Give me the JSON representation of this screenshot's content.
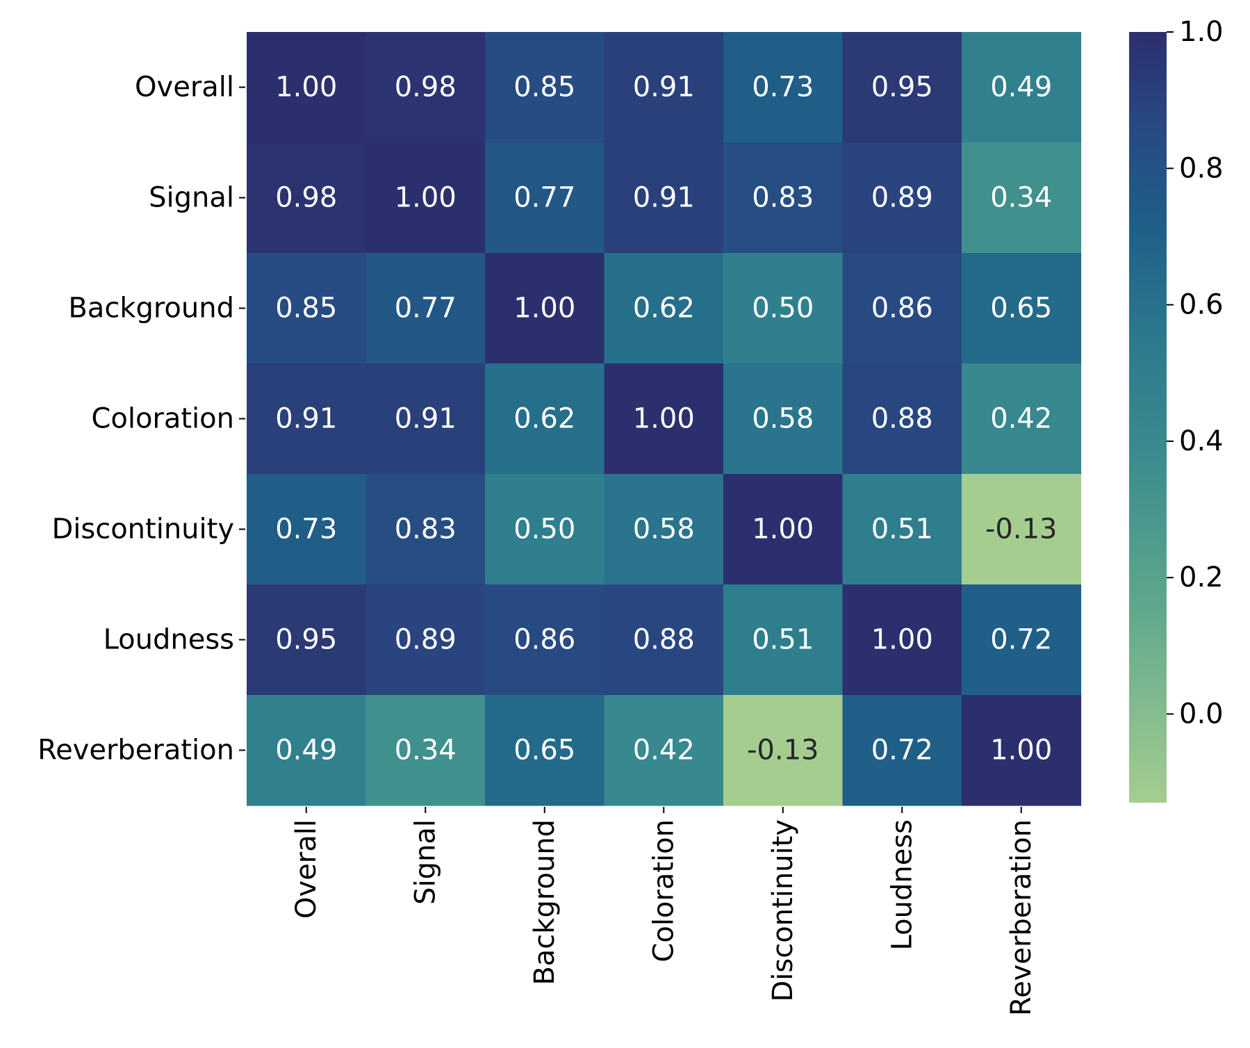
{
  "chart_data": {
    "type": "heatmap",
    "title": "",
    "xlabel": "",
    "ylabel": "",
    "rows": [
      "Overall",
      "Signal",
      "Background",
      "Coloration",
      "Discontinuity",
      "Loudness",
      "Reverberation"
    ],
    "columns": [
      "Overall",
      "Signal",
      "Background",
      "Coloration",
      "Discontinuity",
      "Loudness",
      "Reverberation"
    ],
    "values": [
      [
        1.0,
        0.98,
        0.85,
        0.91,
        0.73,
        0.95,
        0.49
      ],
      [
        0.98,
        1.0,
        0.77,
        0.91,
        0.83,
        0.89,
        0.34
      ],
      [
        0.85,
        0.77,
        1.0,
        0.62,
        0.5,
        0.86,
        0.65
      ],
      [
        0.91,
        0.91,
        0.62,
        1.0,
        0.58,
        0.88,
        0.42
      ],
      [
        0.73,
        0.83,
        0.5,
        0.58,
        1.0,
        0.51,
        -0.13
      ],
      [
        0.95,
        0.89,
        0.86,
        0.88,
        0.51,
        1.0,
        0.72
      ],
      [
        0.49,
        0.34,
        0.65,
        0.42,
        -0.13,
        0.72,
        1.0
      ]
    ],
    "annotation_format": "0.00",
    "colorbar": {
      "vmin": -0.13,
      "vmax": 1.0,
      "ticks": [
        0.0,
        0.2,
        0.4,
        0.6,
        0.8,
        1.0
      ],
      "tick_labels": [
        "0.0",
        "0.2",
        "0.4",
        "0.6",
        "0.8",
        "1.0"
      ],
      "colormap": "crest",
      "colormap_stops": [
        {
          "t": 0.0,
          "color": "#a5cd90"
        },
        {
          "t": 0.25,
          "color": "#60a88c"
        },
        {
          "t": 0.45,
          "color": "#3a8c8f"
        },
        {
          "t": 0.6,
          "color": "#2c7a8e"
        },
        {
          "t": 0.75,
          "color": "#1f5f88"
        },
        {
          "t": 0.88,
          "color": "#284982"
        },
        {
          "t": 1.0,
          "color": "#2c2f6e"
        }
      ]
    },
    "annotation_colors": {
      "light_bg_text": "#262626",
      "dark_bg_text": "#ffffff"
    }
  }
}
